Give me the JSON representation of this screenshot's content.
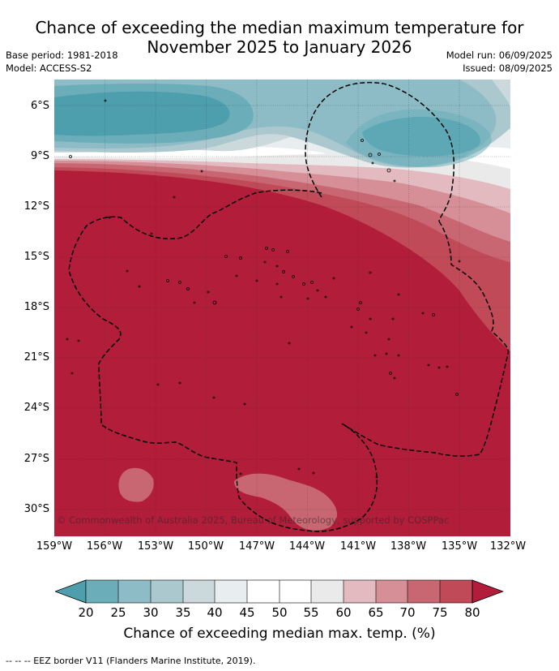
{
  "header": {
    "title_line1": "Chance of exceeding the median maximum temperature for",
    "title_line2": "November 2025 to January 2026",
    "base_period": "Base period: 1981-2018",
    "model": "Model: ACCESS-S2",
    "model_run": "Model run: 06/09/2025",
    "issued": "Issued: 08/09/2025"
  },
  "map": {
    "lat_labels": [
      "6°S",
      "9°S",
      "12°S",
      "15°S",
      "18°S",
      "21°S",
      "24°S",
      "27°S",
      "30°S"
    ],
    "lon_labels": [
      "159°W",
      "156°W",
      "153°W",
      "150°W",
      "147°W",
      "144°W",
      "141°W",
      "138°W",
      "135°W",
      "132°W"
    ],
    "lon_range_deg": [
      -159,
      -132
    ],
    "lat_range_deg": [
      -4.5,
      -31.5
    ],
    "copyright": "© Commonwealth of Australia 2025, Bureau of Meteorology, supported by COSPPac",
    "colors": {
      "c_lt20": "#4d9fae",
      "c_20_25": "#6baeba",
      "c_25_30": "#8dbcc6",
      "c_30_35": "#abc8ce",
      "c_35_40": "#cbd9dd",
      "c_40_45": "#e8eef0",
      "c_45_55": "#ffffff",
      "c_55_60": "#eaeaea",
      "c_60_65": "#e2bac0",
      "c_65_70": "#d68e97",
      "c_70_75": "#c86772",
      "c_75_80": "#c14a58",
      "c_gt80": "#b21d3a"
    }
  },
  "colorbar": {
    "ticks": [
      "20",
      "25",
      "30",
      "35",
      "40",
      "45",
      "50",
      "55",
      "60",
      "65",
      "70",
      "75",
      "80"
    ],
    "label": "Chance of exceeding median max. temp. (%)"
  },
  "footer": {
    "eez_legend": "--  --  -- EEZ border V11 (Flanders Marine Institute, 2019)."
  }
}
